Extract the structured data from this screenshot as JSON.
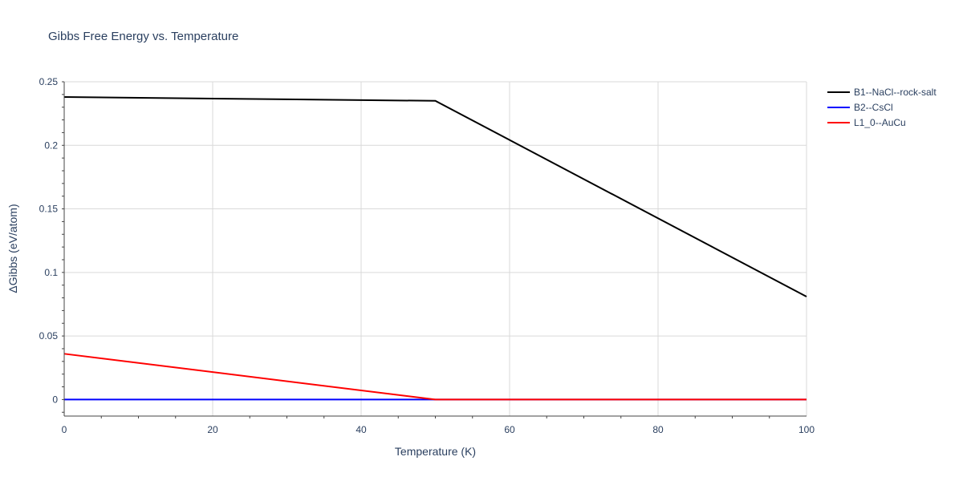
{
  "chart_data": {
    "type": "line",
    "title": "Gibbs Free Energy vs. Temperature",
    "xlabel": "Temperature (K)",
    "ylabel": "ΔGibbs (eV/atom)",
    "xlim": [
      0,
      100
    ],
    "ylim": [
      -0.013,
      0.25
    ],
    "x_ticks": [
      0,
      20,
      40,
      60,
      80,
      100
    ],
    "x_tick_labels": [
      "0",
      "20",
      "40",
      "60",
      "80",
      "100"
    ],
    "y_ticks": [
      0,
      0.05,
      0.1,
      0.15,
      0.2,
      0.25
    ],
    "y_tick_labels": [
      "0",
      "0.05",
      "0.1",
      "0.15",
      "0.2",
      "0.25"
    ],
    "grid": true,
    "legend_position": "top-right, outside plot",
    "series": [
      {
        "name": "B1--NaCl--rock-salt",
        "color": "#000000",
        "x": [
          0,
          50,
          100
        ],
        "y": [
          0.238,
          0.235,
          0.081
        ]
      },
      {
        "name": "B2--CsCl",
        "color": "#0000ff",
        "x": [
          0,
          50,
          100
        ],
        "y": [
          0,
          0,
          0
        ]
      },
      {
        "name": "L1_0--AuCu",
        "color": "#ff0000",
        "x": [
          0,
          50,
          100
        ],
        "y": [
          0.036,
          0,
          0
        ]
      }
    ]
  }
}
